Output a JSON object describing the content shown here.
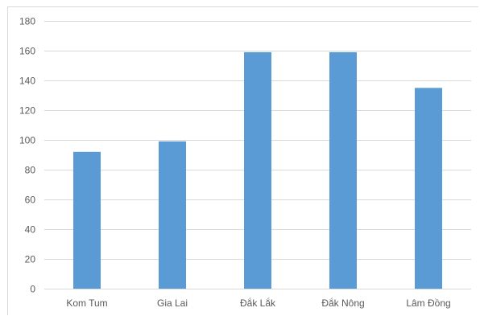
{
  "chart_data": {
    "type": "bar",
    "title": "",
    "xlabel": "",
    "ylabel": "",
    "categories": [
      "Kom Tum",
      "Gia Lai",
      "Đắk Lắk",
      "Đắk Nông",
      "Lâm Đồng"
    ],
    "values": [
      92,
      99,
      159,
      159,
      135
    ],
    "ylim": [
      0,
      180
    ],
    "yticks": [
      0,
      20,
      40,
      60,
      80,
      100,
      120,
      140,
      160,
      180
    ],
    "ytick_labels": [
      "0",
      "20",
      "40",
      "60",
      "80",
      "100",
      "120",
      "140",
      "160",
      "180"
    ],
    "grid": true,
    "legend": "none",
    "colors": {
      "bar": "#5b9bd5",
      "grid": "#d9d9d9",
      "text": "#595959"
    }
  }
}
